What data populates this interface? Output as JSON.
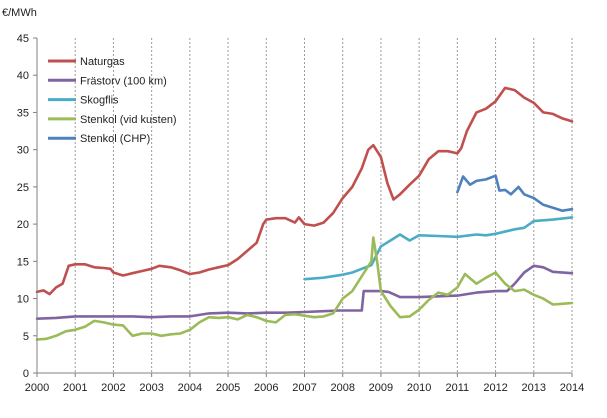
{
  "chart_data": {
    "type": "line",
    "ylabel": "€/MWh",
    "xlim": [
      2000,
      2014
    ],
    "ylim": [
      0,
      45
    ],
    "yticks": [
      0,
      5,
      10,
      15,
      20,
      25,
      30,
      35,
      40,
      45
    ],
    "xticks": [
      2000,
      2001,
      2002,
      2003,
      2004,
      2005,
      2006,
      2007,
      2008,
      2009,
      2010,
      2011,
      2012,
      2013,
      2014
    ],
    "grid": "vertical dashed",
    "legend_position": "top-left",
    "series": [
      {
        "name": "Naturgas",
        "color": "#c0504d",
        "points": [
          [
            2000.0,
            10.9
          ],
          [
            2000.17,
            11.1
          ],
          [
            2000.33,
            10.6
          ],
          [
            2000.5,
            11.5
          ],
          [
            2000.67,
            12.0
          ],
          [
            2000.83,
            14.4
          ],
          [
            2001.0,
            14.6
          ],
          [
            2001.25,
            14.6
          ],
          [
            2001.5,
            14.2
          ],
          [
            2001.75,
            14.1
          ],
          [
            2001.92,
            14.0
          ],
          [
            2002.0,
            13.5
          ],
          [
            2002.25,
            13.1
          ],
          [
            2002.5,
            13.4
          ],
          [
            2002.75,
            13.7
          ],
          [
            2003.0,
            14.0
          ],
          [
            2003.2,
            14.4
          ],
          [
            2003.5,
            14.2
          ],
          [
            2003.75,
            13.8
          ],
          [
            2004.0,
            13.3
          ],
          [
            2004.25,
            13.5
          ],
          [
            2004.5,
            13.9
          ],
          [
            2004.75,
            14.2
          ],
          [
            2005.0,
            14.5
          ],
          [
            2005.25,
            15.3
          ],
          [
            2005.5,
            16.4
          ],
          [
            2005.75,
            17.5
          ],
          [
            2005.92,
            20.0
          ],
          [
            2006.0,
            20.6
          ],
          [
            2006.25,
            20.8
          ],
          [
            2006.5,
            20.8
          ],
          [
            2006.75,
            20.2
          ],
          [
            2006.85,
            20.9
          ],
          [
            2007.0,
            20.0
          ],
          [
            2007.25,
            19.8
          ],
          [
            2007.5,
            20.2
          ],
          [
            2007.75,
            21.5
          ],
          [
            2008.0,
            23.5
          ],
          [
            2008.25,
            25.0
          ],
          [
            2008.5,
            27.5
          ],
          [
            2008.67,
            30.0
          ],
          [
            2008.8,
            30.6
          ],
          [
            2009.0,
            29.0
          ],
          [
            2009.17,
            25.5
          ],
          [
            2009.33,
            23.3
          ],
          [
            2009.5,
            24.0
          ],
          [
            2009.75,
            25.3
          ],
          [
            2010.0,
            26.5
          ],
          [
            2010.25,
            28.7
          ],
          [
            2010.5,
            29.8
          ],
          [
            2010.75,
            29.8
          ],
          [
            2011.0,
            29.5
          ],
          [
            2011.1,
            30.2
          ],
          [
            2011.25,
            32.5
          ],
          [
            2011.5,
            35.0
          ],
          [
            2011.75,
            35.5
          ],
          [
            2012.0,
            36.5
          ],
          [
            2012.25,
            38.3
          ],
          [
            2012.5,
            38.0
          ],
          [
            2012.75,
            37.0
          ],
          [
            2013.0,
            36.3
          ],
          [
            2013.25,
            35.0
          ],
          [
            2013.5,
            34.8
          ],
          [
            2013.75,
            34.2
          ],
          [
            2014.0,
            33.8
          ]
        ]
      },
      {
        "name": "Frästorv (100 km)",
        "color": "#8064a2",
        "points": [
          [
            2000.0,
            7.3
          ],
          [
            2000.5,
            7.4
          ],
          [
            2001.0,
            7.6
          ],
          [
            2001.5,
            7.6
          ],
          [
            2002.0,
            7.6
          ],
          [
            2002.5,
            7.6
          ],
          [
            2003.0,
            7.5
          ],
          [
            2003.5,
            7.6
          ],
          [
            2004.0,
            7.6
          ],
          [
            2004.5,
            8.0
          ],
          [
            2005.0,
            8.1
          ],
          [
            2005.5,
            8.0
          ],
          [
            2006.0,
            8.1
          ],
          [
            2006.5,
            8.1
          ],
          [
            2007.0,
            8.2
          ],
          [
            2007.5,
            8.3
          ],
          [
            2007.9,
            8.4
          ],
          [
            2008.5,
            8.4
          ],
          [
            2008.55,
            11.0
          ],
          [
            2009.0,
            11.0
          ],
          [
            2009.2,
            10.9
          ],
          [
            2009.5,
            10.2
          ],
          [
            2010.0,
            10.2
          ],
          [
            2010.5,
            10.3
          ],
          [
            2011.0,
            10.4
          ],
          [
            2011.5,
            10.8
          ],
          [
            2012.0,
            11.0
          ],
          [
            2012.3,
            11.0
          ],
          [
            2012.5,
            12.0
          ],
          [
            2012.75,
            13.5
          ],
          [
            2013.0,
            14.4
          ],
          [
            2013.25,
            14.2
          ],
          [
            2013.5,
            13.6
          ],
          [
            2014.0,
            13.4
          ]
        ]
      },
      {
        "name": "Skogflis",
        "color": "#4bacc6",
        "points": [
          [
            2007.0,
            12.6
          ],
          [
            2007.5,
            12.8
          ],
          [
            2008.0,
            13.2
          ],
          [
            2008.25,
            13.5
          ],
          [
            2008.5,
            14.0
          ],
          [
            2008.75,
            14.5
          ],
          [
            2009.0,
            17.0
          ],
          [
            2009.25,
            17.8
          ],
          [
            2009.5,
            18.6
          ],
          [
            2009.75,
            17.8
          ],
          [
            2010.0,
            18.5
          ],
          [
            2010.5,
            18.4
          ],
          [
            2011.0,
            18.3
          ],
          [
            2011.5,
            18.6
          ],
          [
            2011.75,
            18.5
          ],
          [
            2012.0,
            18.7
          ],
          [
            2012.5,
            19.3
          ],
          [
            2012.75,
            19.5
          ],
          [
            2013.0,
            20.4
          ],
          [
            2013.5,
            20.6
          ],
          [
            2014.0,
            20.9
          ]
        ]
      },
      {
        "name": "Stenkol (vid kusten)",
        "color": "#9bbb59",
        "points": [
          [
            2000.0,
            4.5
          ],
          [
            2000.25,
            4.6
          ],
          [
            2000.5,
            5.0
          ],
          [
            2000.75,
            5.6
          ],
          [
            2001.0,
            5.8
          ],
          [
            2001.25,
            6.2
          ],
          [
            2001.5,
            7.0
          ],
          [
            2001.75,
            6.8
          ],
          [
            2002.0,
            6.5
          ],
          [
            2002.25,
            6.4
          ],
          [
            2002.5,
            5.0
          ],
          [
            2002.75,
            5.3
          ],
          [
            2003.0,
            5.3
          ],
          [
            2003.25,
            5.0
          ],
          [
            2003.5,
            5.2
          ],
          [
            2003.75,
            5.3
          ],
          [
            2004.0,
            5.8
          ],
          [
            2004.25,
            6.8
          ],
          [
            2004.5,
            7.5
          ],
          [
            2004.75,
            7.4
          ],
          [
            2005.0,
            7.5
          ],
          [
            2005.25,
            7.2
          ],
          [
            2005.5,
            7.8
          ],
          [
            2005.75,
            7.5
          ],
          [
            2006.0,
            7.0
          ],
          [
            2006.25,
            6.8
          ],
          [
            2006.5,
            7.8
          ],
          [
            2006.75,
            7.9
          ],
          [
            2007.0,
            7.7
          ],
          [
            2007.25,
            7.5
          ],
          [
            2007.5,
            7.6
          ],
          [
            2007.75,
            8.0
          ],
          [
            2008.0,
            10.0
          ],
          [
            2008.25,
            11.0
          ],
          [
            2008.5,
            13.0
          ],
          [
            2008.75,
            15.0
          ],
          [
            2008.8,
            18.2
          ],
          [
            2008.9,
            15.0
          ],
          [
            2009.0,
            11.0
          ],
          [
            2009.25,
            9.0
          ],
          [
            2009.5,
            7.5
          ],
          [
            2009.75,
            7.6
          ],
          [
            2010.0,
            8.5
          ],
          [
            2010.25,
            9.8
          ],
          [
            2010.5,
            10.8
          ],
          [
            2010.75,
            10.5
          ],
          [
            2011.0,
            11.5
          ],
          [
            2011.2,
            13.3
          ],
          [
            2011.5,
            12.0
          ],
          [
            2011.75,
            12.8
          ],
          [
            2012.0,
            13.5
          ],
          [
            2012.25,
            12.0
          ],
          [
            2012.5,
            11.0
          ],
          [
            2012.75,
            11.2
          ],
          [
            2013.0,
            10.5
          ],
          [
            2013.25,
            10.0
          ],
          [
            2013.5,
            9.2
          ],
          [
            2013.75,
            9.3
          ],
          [
            2014.0,
            9.4
          ]
        ]
      },
      {
        "name": "Stenkol (CHP)",
        "color": "#4f81bd",
        "points": [
          [
            2011.0,
            24.3
          ],
          [
            2011.15,
            26.4
          ],
          [
            2011.33,
            25.3
          ],
          [
            2011.5,
            25.8
          ],
          [
            2011.75,
            26.0
          ],
          [
            2012.0,
            26.5
          ],
          [
            2012.1,
            24.5
          ],
          [
            2012.25,
            24.6
          ],
          [
            2012.4,
            24.0
          ],
          [
            2012.6,
            25.0
          ],
          [
            2012.75,
            24.0
          ],
          [
            2013.0,
            23.5
          ],
          [
            2013.25,
            22.6
          ],
          [
            2013.5,
            22.2
          ],
          [
            2013.75,
            21.8
          ],
          [
            2014.0,
            22.0
          ]
        ]
      }
    ]
  }
}
